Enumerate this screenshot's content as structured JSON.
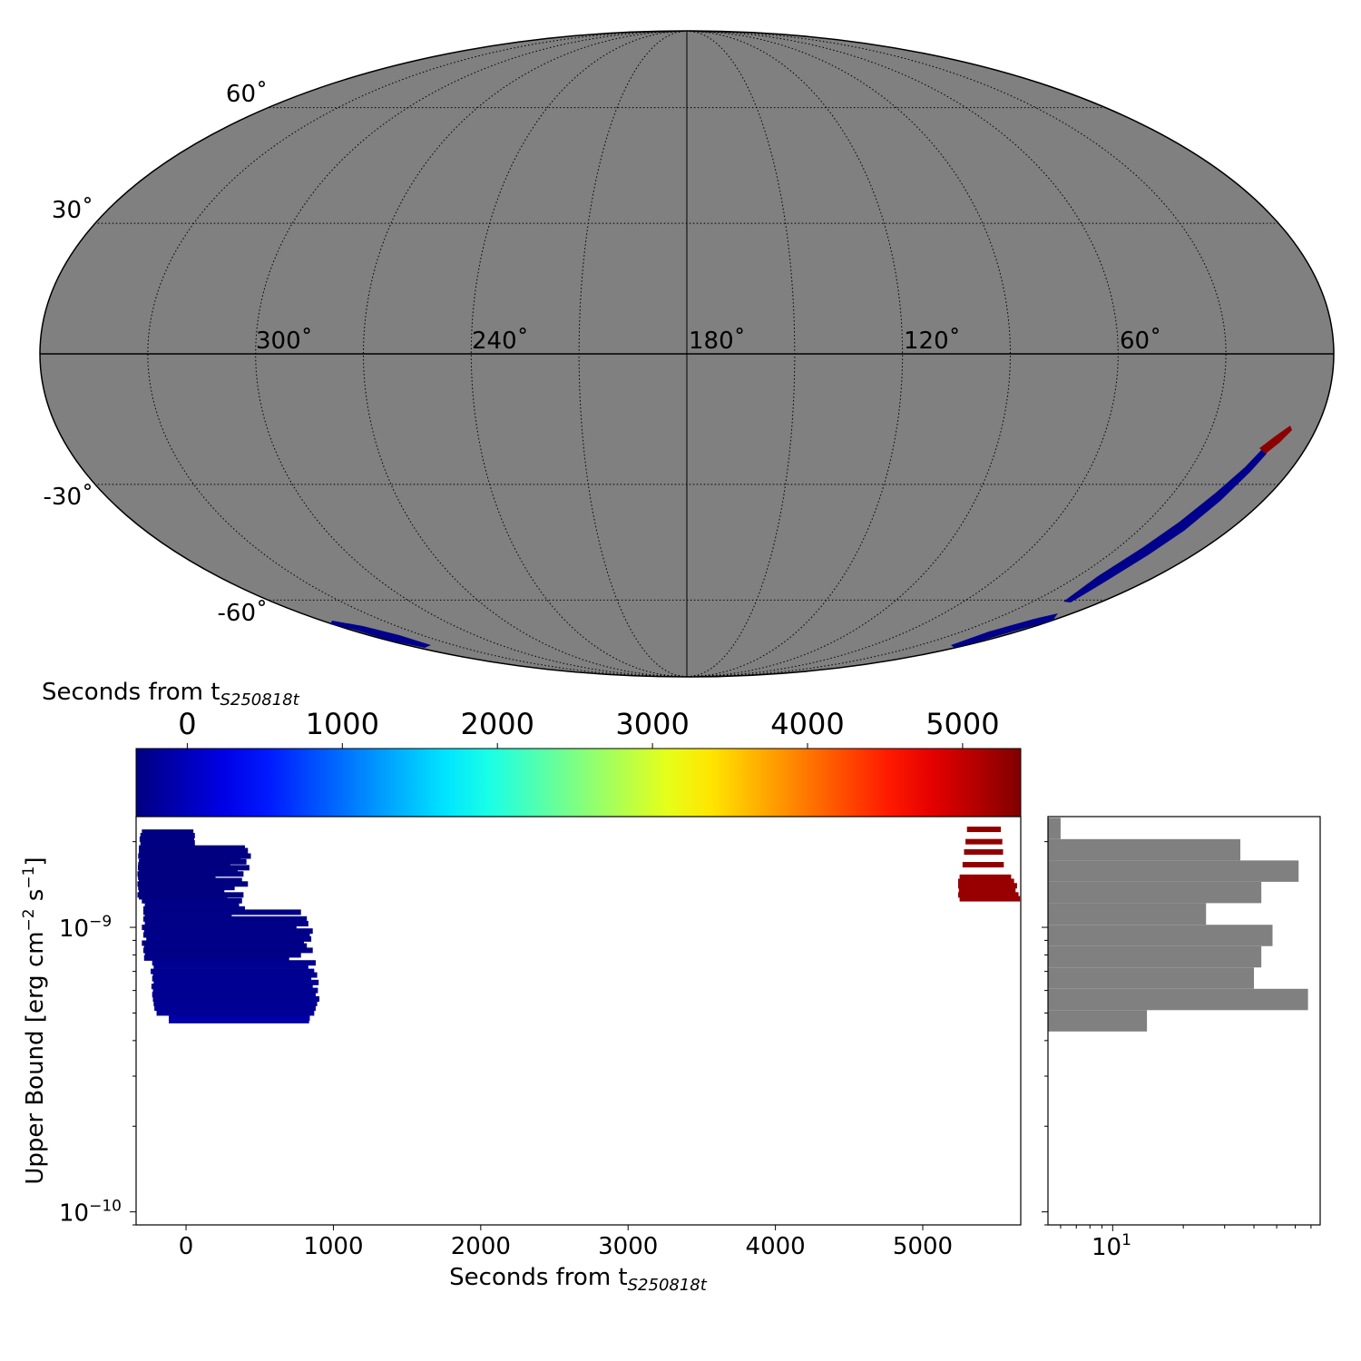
{
  "chart_data": [
    {
      "type": "map",
      "projection": "mollweide",
      "background_color": "#808080",
      "lat_labels": [
        "60˚",
        "30˚",
        "-30˚",
        "-60˚"
      ],
      "lon_labels": [
        "300˚",
        "240˚",
        "180˚",
        "120˚",
        "60˚"
      ],
      "lat_values": [
        60,
        30,
        -30,
        -60
      ],
      "lon_values": [
        300,
        240,
        180,
        120,
        60
      ],
      "center_lon": 180,
      "grid": true
    },
    {
      "type": "colorbar",
      "colormap": "jet",
      "label": "Seconds from t",
      "label_sub": "S250818t",
      "range": [
        -330,
        5375
      ],
      "ticks": [
        0,
        1000,
        2000,
        3000,
        4000,
        5000
      ],
      "tick_labels": [
        "0",
        "1000",
        "2000",
        "3000",
        "4000",
        "5000"
      ]
    },
    {
      "type": "bar",
      "orientation": "horizontal-intervals",
      "xlabel": "Seconds from t",
      "xlabel_sub": "S250818t",
      "ylabel": "Upper Bound [erg cm",
      "ylabel_sup1": "−2",
      "ylabel_mid": " s",
      "ylabel_sup2": "−1",
      "ylabel_end": "]",
      "xlim": [
        -339,
        5665
      ],
      "ylim": [
        9e-11,
        2.45e-09
      ],
      "yscale": "log",
      "xticks": [
        0,
        1000,
        2000,
        3000,
        4000,
        5000
      ],
      "xtick_labels": [
        "0",
        "1000",
        "2000",
        "3000",
        "4000",
        "5000"
      ],
      "ytick_labels": [
        {
          "base": "10",
          "exp": "−9",
          "value": 1e-09
        },
        {
          "base": "10",
          "exp": "−10",
          "value": 1e-10
        }
      ],
      "flux_unit": 1e-09,
      "bars_columns": [
        "start_s",
        "end_s",
        "upper_bound_1e-9"
      ],
      "bars": [
        [
          -300,
          50,
          2.16
        ],
        [
          -310,
          60,
          2.1
        ],
        [
          -315,
          55,
          2.04
        ],
        [
          -310,
          60,
          1.98
        ],
        [
          -320,
          400,
          1.9
        ],
        [
          -315,
          420,
          1.86
        ],
        [
          -320,
          380,
          1.82
        ],
        [
          -325,
          440,
          1.78
        ],
        [
          -310,
          370,
          1.74
        ],
        [
          -320,
          410,
          1.7
        ],
        [
          -325,
          300,
          1.66
        ],
        [
          -327,
          430,
          1.62
        ],
        [
          -320,
          350,
          1.58
        ],
        [
          -330,
          390,
          1.54
        ],
        [
          -326,
          200,
          1.5
        ],
        [
          -320,
          380,
          1.46
        ],
        [
          -330,
          420,
          1.42
        ],
        [
          -325,
          330,
          1.38
        ],
        [
          -320,
          260,
          1.34
        ],
        [
          -330,
          390,
          1.3
        ],
        [
          -320,
          280,
          1.28
        ],
        [
          -300,
          380,
          1.24
        ],
        [
          -280,
          360,
          1.2
        ],
        [
          -290,
          400,
          1.16
        ],
        [
          -290,
          780,
          1.13
        ],
        [
          -280,
          310,
          1.1
        ],
        [
          -290,
          820,
          1.07
        ],
        [
          -280,
          830,
          1.03
        ],
        [
          -300,
          750,
          1.0
        ],
        [
          -285,
          860,
          0.97
        ],
        [
          -290,
          840,
          0.94
        ],
        [
          -270,
          850,
          0.91
        ],
        [
          -300,
          800,
          0.88
        ],
        [
          -285,
          820,
          0.86
        ],
        [
          -290,
          860,
          0.83
        ],
        [
          -280,
          780,
          0.8
        ],
        [
          -285,
          700,
          0.78
        ],
        [
          -230,
          880,
          0.75
        ],
        [
          -220,
          830,
          0.73
        ],
        [
          -240,
          870,
          0.7
        ],
        [
          -225,
          890,
          0.68
        ],
        [
          -230,
          850,
          0.66
        ],
        [
          -220,
          900,
          0.64
        ],
        [
          -235,
          860,
          0.62
        ],
        [
          -225,
          895,
          0.6
        ],
        [
          -230,
          880,
          0.58
        ],
        [
          -225,
          905,
          0.56
        ],
        [
          -220,
          890,
          0.54
        ],
        [
          -215,
          880,
          0.52
        ],
        [
          -200,
          870,
          0.5
        ],
        [
          -117,
          840,
          0.48
        ],
        [
          -117,
          835,
          0.47
        ],
        [
          5300,
          5530,
          2.21
        ],
        [
          5290,
          5540,
          2.0
        ],
        [
          5280,
          5545,
          1.84
        ],
        [
          5270,
          5550,
          1.66
        ],
        [
          5250,
          5600,
          1.5
        ],
        [
          5240,
          5620,
          1.45
        ],
        [
          5240,
          5640,
          1.4
        ],
        [
          5245,
          5630,
          1.35
        ],
        [
          5240,
          5650,
          1.3
        ],
        [
          5250,
          5660,
          1.26
        ]
      ]
    },
    {
      "type": "histogram",
      "orientation": "horizontal",
      "xscale": "log",
      "xlim": [
        5.3,
        76.6
      ],
      "xtick_label": {
        "base": "10",
        "exp": "1"
      },
      "color": "#808080",
      "bin_edges_log10_flux": [
        -9.366,
        -9.291,
        -9.216,
        -9.141,
        -9.066,
        -8.991,
        -8.915,
        -8.84,
        -8.765,
        -8.69,
        -8.615
      ],
      "counts_bottom_to_top": [
        14,
        68,
        40,
        43,
        48,
        25,
        43,
        62,
        35,
        6
      ]
    }
  ]
}
